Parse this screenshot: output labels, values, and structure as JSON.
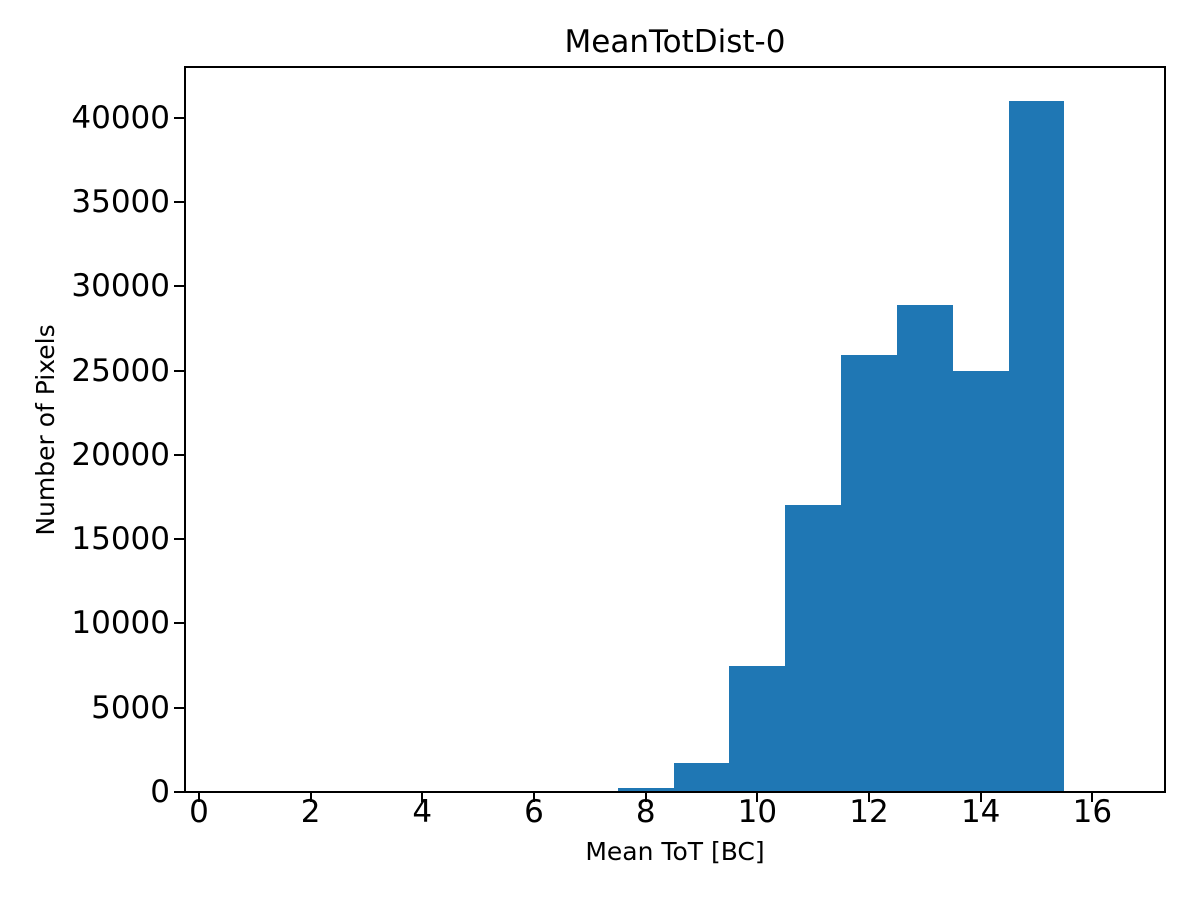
{
  "window": {
    "background_color": "#ffffff"
  },
  "chart_data": {
    "type": "bar",
    "subtype": "histogram",
    "title": "MeanTotDist-0",
    "xlabel": "Mean ToT [BC]",
    "ylabel": "Number of Pixels",
    "bin_edges": [
      7.5,
      8.5,
      9.5,
      10.5,
      11.5,
      12.5,
      13.5,
      14.5,
      15.5
    ],
    "counts": [
      250,
      1750,
      7500,
      17000,
      25900,
      28900,
      25000,
      41000
    ],
    "bar_color": "#1f77b4",
    "axis_color": "#000000",
    "text_color": "#000000",
    "xlim": [
      -0.25,
      17.3
    ],
    "ylim": [
      0,
      43000
    ],
    "xticks": [
      0,
      2,
      4,
      6,
      8,
      10,
      12,
      14,
      16
    ],
    "xtick_labels": [
      "0",
      "2",
      "4",
      "6",
      "8",
      "10",
      "12",
      "14",
      "16"
    ],
    "yticks": [
      0,
      5000,
      10000,
      15000,
      20000,
      25000,
      30000,
      35000,
      40000
    ],
    "ytick_labels": [
      "0",
      "5000",
      "10000",
      "15000",
      "20000",
      "25000",
      "30000",
      "35000",
      "40000"
    ],
    "grid": false,
    "legend": null
  }
}
